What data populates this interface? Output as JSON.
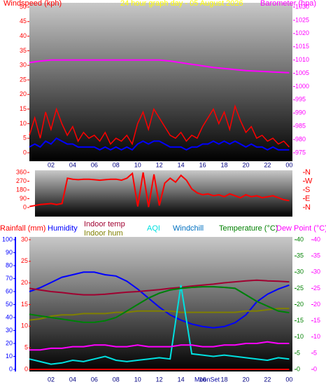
{
  "chart_data": [
    {
      "type": "line",
      "title": "24 hour graph day - 05 August 2026",
      "ylabel": "Windspeed (kph)",
      "y2label": "Barometer (hpa)",
      "x": [
        0,
        0.5,
        1,
        1.5,
        2,
        2.5,
        3,
        3.5,
        4,
        4.5,
        5,
        5.5,
        6,
        6.5,
        7,
        7.5,
        8,
        8.5,
        9,
        9.5,
        10,
        10.5,
        11,
        11.5,
        12,
        12.5,
        13,
        13.5,
        14,
        14.5,
        15,
        15.5,
        16,
        16.5,
        17,
        17.5,
        18,
        18.5,
        19,
        19.5,
        20,
        20.5,
        21,
        21.5,
        22,
        22.5,
        23,
        23.5,
        24
      ],
      "xlim": [
        0,
        24.3
      ],
      "xticks": [
        {
          "value": 2,
          "label": "02"
        },
        {
          "value": 4,
          "label": "04"
        },
        {
          "value": 6,
          "label": "06"
        },
        {
          "value": 8,
          "label": "08"
        },
        10,
        12,
        14,
        16,
        18,
        20,
        22,
        {
          "value": 24,
          "label": "00"
        }
      ],
      "ylim": [
        0,
        50
      ],
      "yticks": [
        0,
        5,
        10,
        15,
        20,
        25,
        30,
        35,
        40,
        45,
        50
      ],
      "y2lim": [
        975,
        1030
      ],
      "y2ticks": [
        975,
        980,
        985,
        990,
        995,
        1000,
        1005,
        1010,
        1015,
        1020,
        1025,
        1030
      ],
      "series": [
        {
          "color": "#ff0000",
          "values": [
            6,
            12,
            5,
            14,
            8,
            15,
            10,
            6,
            9,
            4,
            7,
            5,
            6,
            4,
            7,
            3,
            5,
            4,
            6,
            3,
            10,
            14,
            8,
            15,
            12,
            9,
            6,
            5,
            7,
            4,
            6,
            5,
            9,
            12,
            15,
            10,
            14,
            8,
            16,
            11,
            7,
            9,
            5,
            6,
            4,
            5,
            3,
            4,
            2
          ]
        },
        {
          "color": "#0000ff",
          "values": [
            2,
            3,
            2,
            4,
            3,
            5,
            4,
            3,
            3,
            2,
            2,
            2,
            2,
            1,
            2,
            1,
            2,
            1,
            2,
            1,
            3,
            4,
            3,
            4,
            4,
            3,
            2,
            2,
            2,
            1,
            2,
            2,
            3,
            3,
            4,
            3,
            4,
            3,
            4,
            3,
            2,
            3,
            2,
            2,
            1,
            2,
            1,
            1,
            1
          ]
        },
        {
          "color": "#ff00ff",
          "axis": "y2",
          "values": [
            1009,
            1009.3,
            1009.6,
            1009.8,
            1010,
            1010,
            1010,
            1010,
            1010,
            1010,
            1010,
            1010,
            1010,
            1010,
            1010,
            1010,
            1010,
            1010,
            1010,
            1010,
            1010,
            1010,
            1010,
            1010,
            1010,
            1009.8,
            1009.6,
            1009.3,
            1009,
            1008.7,
            1008.4,
            1008.1,
            1007.8,
            1007.5,
            1007.2,
            1007,
            1006.8,
            1006.6,
            1006.4,
            1006.2,
            1006,
            1005.9,
            1005.8,
            1005.7,
            1005.6,
            1005.5,
            1005.4,
            1005.3,
            1005.2
          ]
        }
      ]
    },
    {
      "type": "line",
      "x": [
        0,
        0.5,
        1,
        1.5,
        2,
        2.5,
        3,
        3.5,
        4,
        4.5,
        5,
        5.5,
        6,
        6.5,
        7,
        7.5,
        8,
        8.5,
        9,
        9.5,
        10,
        10.5,
        11,
        11.5,
        12,
        12.5,
        13,
        13.5,
        14,
        14.5,
        15,
        15.5,
        16,
        16.5,
        17,
        17.5,
        18,
        18.5,
        19,
        19.5,
        20,
        20.5,
        21,
        21.5,
        22,
        22.5,
        23,
        23.5,
        24
      ],
      "xlim": [
        0.5,
        24.3
      ],
      "ylim": [
        0,
        360
      ],
      "yticks": [
        0,
        90,
        180,
        270,
        360
      ],
      "y2lim": [
        0,
        360
      ],
      "y2ticks": [
        {
          "value": 0,
          "label": "N"
        },
        {
          "value": 90,
          "label": "E"
        },
        {
          "value": 180,
          "label": "S"
        },
        {
          "value": 270,
          "label": "W"
        },
        {
          "value": 360,
          "label": "N"
        }
      ],
      "series": [
        {
          "color": "#ff0000",
          "values": [
            10,
            20,
            30,
            35,
            40,
            30,
            40,
            300,
            290,
            285,
            290,
            290,
            285,
            280,
            285,
            290,
            290,
            280,
            300,
            350,
            10,
            360,
            5,
            340,
            20,
            250,
            300,
            260,
            330,
            280,
            190,
            150,
            130,
            140,
            120,
            130,
            110,
            140,
            120,
            100,
            130,
            110,
            120,
            100,
            110,
            120,
            100,
            80,
            70
          ]
        }
      ]
    },
    {
      "type": "line",
      "annotation": "MoonSet",
      "x": [
        0,
        1,
        2,
        3,
        4,
        5,
        6,
        7,
        8,
        9,
        10,
        11,
        12,
        13,
        14,
        15,
        16,
        17,
        18,
        19,
        20,
        21,
        22,
        23,
        24
      ],
      "xlim": [
        0,
        24.3
      ],
      "xticks": [
        {
          "value": 2,
          "label": "02"
        },
        {
          "value": 4,
          "label": "04"
        },
        {
          "value": 6,
          "label": "06"
        },
        {
          "value": 8,
          "label": "08"
        },
        10,
        12,
        14,
        16,
        18,
        20,
        22,
        {
          "value": 24,
          "label": "00"
        }
      ],
      "ylim": [
        0,
        30
      ],
      "yticks": [
        0,
        5,
        10,
        15,
        20,
        25,
        30
      ],
      "y3lim": [
        0,
        100
      ],
      "y3ticks": [
        0,
        10,
        20,
        30,
        40,
        50,
        60,
        70,
        80,
        90,
        100
      ],
      "y2lim": [
        0,
        40
      ],
      "y2ticks": [
        0,
        5,
        10,
        15,
        20,
        25,
        30,
        35,
        40
      ],
      "y4lim": [
        0,
        40
      ],
      "y4ticks": [
        0,
        5,
        10,
        15,
        20,
        25,
        30,
        35,
        40
      ],
      "series": [
        {
          "name": "Rainfall (mm)",
          "color": "#ff0000",
          "values": [
            0,
            0,
            0,
            0,
            0,
            0,
            0,
            0,
            0,
            0,
            0,
            0,
            0,
            0,
            0,
            0,
            0,
            0,
            0,
            0,
            0,
            0,
            0,
            0,
            0
          ]
        },
        {
          "name": "Humidity",
          "color": "#0000ff",
          "axis": "y3",
          "values": [
            60,
            63,
            67,
            71,
            73,
            75,
            75,
            73,
            72,
            68,
            62,
            55,
            48,
            42,
            38,
            35,
            33,
            32,
            33,
            36,
            42,
            52,
            58,
            62,
            65
          ]
        },
        {
          "name": "Indoor temp",
          "color": "#a00030",
          "axis": "y2",
          "values": [
            25,
            24.5,
            24,
            23.7,
            23.3,
            23,
            23,
            23.2,
            23.5,
            23.8,
            24,
            24.3,
            24.6,
            25,
            25.3,
            25.7,
            26,
            26.3,
            26.7,
            27,
            27.3,
            27.5,
            27.3,
            27.2,
            27
          ]
        },
        {
          "name": "Indoor hum",
          "color": "#808000",
          "axis": "y3",
          "values": [
            38,
            39,
            41,
            42,
            42,
            43,
            43,
            43,
            44,
            44,
            45,
            45,
            45,
            45,
            44,
            44,
            44,
            44,
            44,
            44,
            45,
            45,
            46,
            47,
            47
          ]
        },
        {
          "name": "AQI",
          "color": "#00e0e0",
          "axis": "y3",
          "values": [
            8,
            6,
            4,
            5,
            7,
            6,
            8,
            10,
            7,
            6,
            7,
            8,
            9,
            8,
            65,
            12,
            11,
            10,
            11,
            10,
            9,
            8,
            7,
            9,
            8
          ]
        },
        {
          "name": "Windchill",
          "color": "#0070c0",
          "axis": "y2",
          "values": [
            17,
            16.5,
            16,
            15.5,
            15,
            14.5,
            14.5,
            15,
            16,
            18,
            20,
            22,
            23.5,
            24.5,
            25,
            25.3,
            25.5,
            25.5,
            25.3,
            25,
            23,
            21,
            19.5,
            18,
            17.5
          ]
        },
        {
          "name": "Temperature (°C)",
          "color": "#008000",
          "axis": "y2",
          "values": [
            17,
            16.5,
            16,
            15.5,
            15,
            14.5,
            14.5,
            15,
            16,
            18,
            20,
            22,
            23.5,
            24.5,
            25,
            25.3,
            25.5,
            25.5,
            25.3,
            25,
            23,
            21,
            19.5,
            18,
            17.5
          ]
        },
        {
          "name": "Dew Point (°C)",
          "color": "#ff00ff",
          "axis": "y4",
          "values": [
            6,
            6,
            6.5,
            6.5,
            7,
            7,
            7.5,
            7.5,
            7,
            7,
            7.5,
            7,
            7,
            7,
            7.5,
            7.5,
            7,
            7,
            7.5,
            7.5,
            8,
            8,
            8.5,
            8,
            8
          ]
        }
      ]
    }
  ]
}
